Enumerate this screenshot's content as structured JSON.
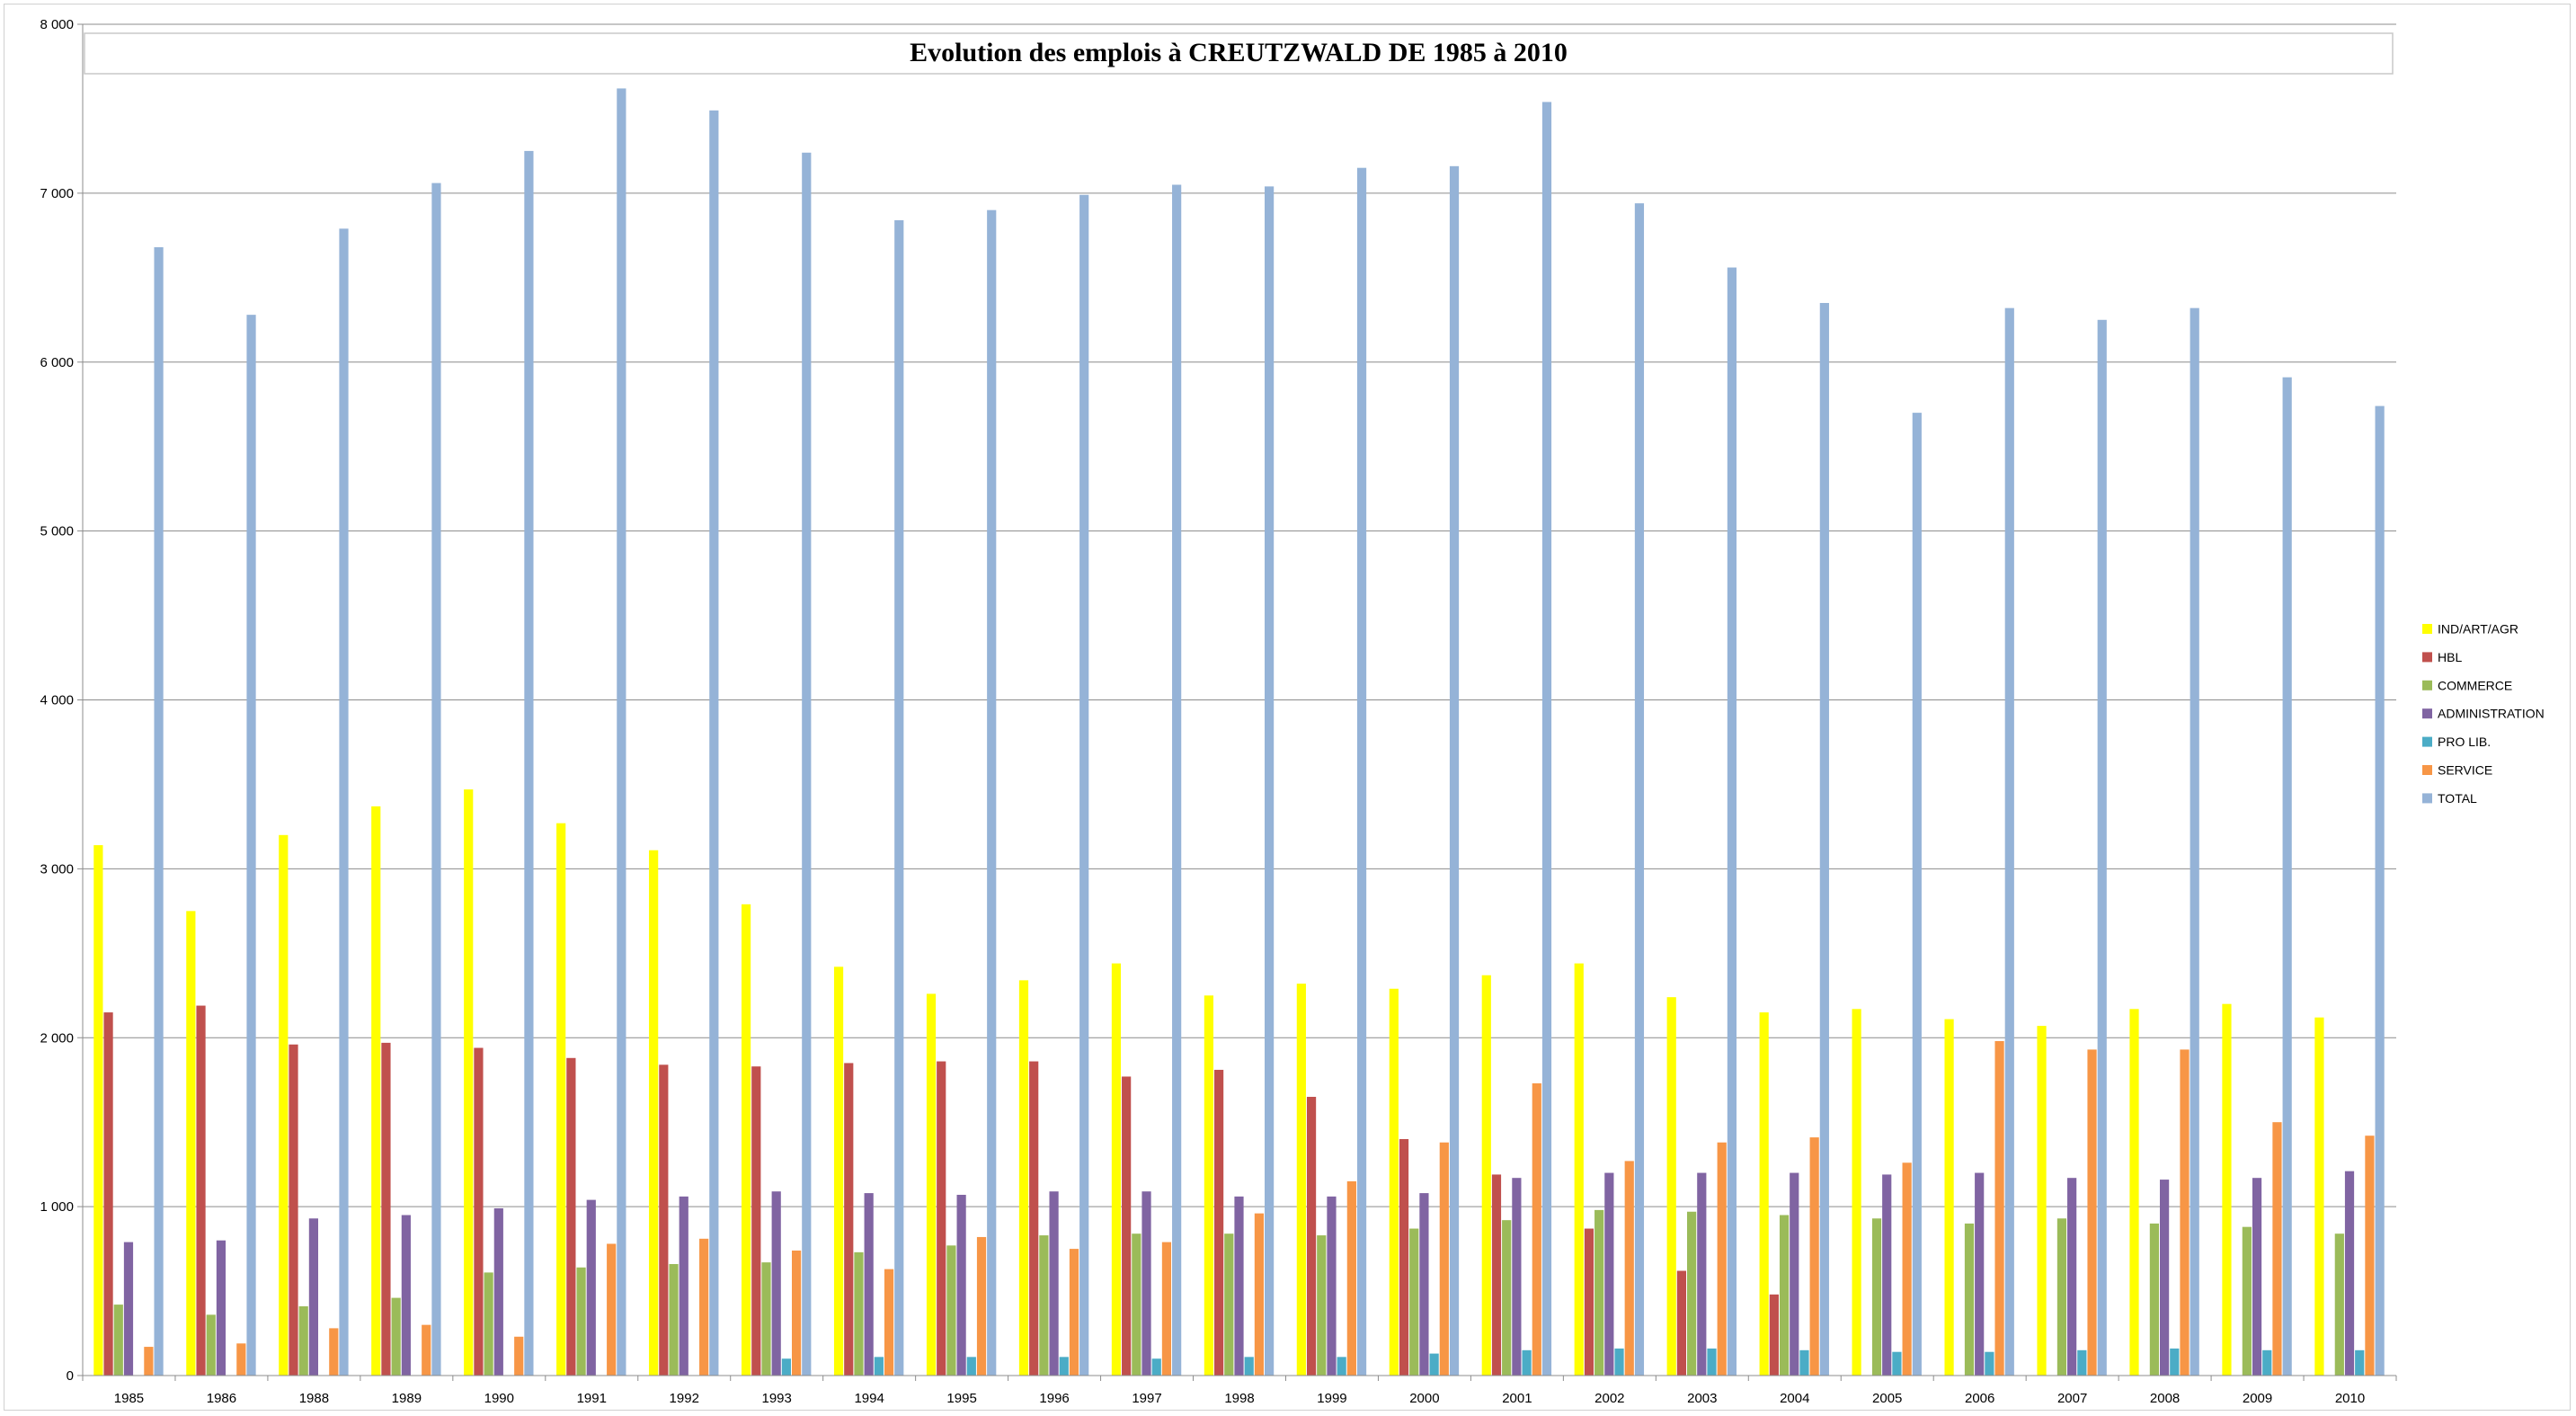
{
  "chart_data": {
    "type": "bar",
    "title": "Evolution des emplois à CREUTZWALD DE 1985 à 2010",
    "categories": [
      "1985",
      "1986",
      "1988",
      "1989",
      "1990",
      "1991",
      "1992",
      "1993",
      "1994",
      "1995",
      "1996",
      "1997",
      "1998",
      "1999",
      "2000",
      "2001",
      "2002",
      "2003",
      "2004",
      "2005",
      "2006",
      "2007",
      "2008",
      "2009",
      "2010"
    ],
    "ylim": [
      0,
      8000
    ],
    "yticks": [
      0,
      1000,
      2000,
      3000,
      4000,
      5000,
      6000,
      7000,
      8000
    ],
    "ytick_labels": [
      "0",
      "1 000",
      "2 000",
      "3 000",
      "4 000",
      "5 000",
      "6 000",
      "7 000",
      "8 000"
    ],
    "grid": true,
    "legend_position": "right",
    "series": [
      {
        "name": "IND/ART/AGR",
        "color": "#ffff00",
        "values": [
          3140,
          2750,
          3200,
          3370,
          3470,
          3270,
          3110,
          2790,
          2420,
          2260,
          2340,
          2440,
          2250,
          2320,
          2290,
          2370,
          2440,
          2240,
          2150,
          2170,
          2110,
          2070,
          2170,
          2200,
          2120
        ]
      },
      {
        "name": "HBL",
        "color": "#c0504d",
        "values": [
          2150,
          2190,
          1960,
          1970,
          1940,
          1880,
          1840,
          1830,
          1850,
          1860,
          1860,
          1770,
          1810,
          1650,
          1400,
          1190,
          870,
          620,
          480,
          0,
          0,
          0,
          0,
          0,
          0
        ]
      },
      {
        "name": "COMMERCE",
        "color": "#9bbb59",
        "values": [
          420,
          360,
          410,
          460,
          610,
          640,
          660,
          670,
          730,
          770,
          830,
          840,
          840,
          830,
          870,
          920,
          980,
          970,
          950,
          930,
          900,
          930,
          900,
          880,
          840
        ]
      },
      {
        "name": "ADMINISTRATION",
        "color": "#8064a2",
        "values": [
          790,
          800,
          930,
          950,
          990,
          1040,
          1060,
          1090,
          1080,
          1070,
          1090,
          1090,
          1060,
          1060,
          1080,
          1170,
          1200,
          1200,
          1200,
          1190,
          1200,
          1170,
          1160,
          1170,
          1210
        ]
      },
      {
        "name": "PRO LIB.",
        "color": "#4bacc6",
        "values": [
          0,
          0,
          0,
          0,
          0,
          0,
          0,
          100,
          110,
          110,
          110,
          100,
          110,
          110,
          130,
          150,
          160,
          160,
          150,
          140,
          140,
          150,
          160,
          150,
          150
        ]
      },
      {
        "name": "SERVICE",
        "color": "#f79646",
        "values": [
          170,
          190,
          280,
          300,
          230,
          780,
          810,
          740,
          630,
          820,
          750,
          790,
          960,
          1150,
          1380,
          1730,
          1270,
          1380,
          1410,
          1260,
          1980,
          1930,
          1930,
          1500,
          1420
        ]
      },
      {
        "name": "TOTAL",
        "color": "#95b3d7",
        "values": [
          6680,
          6280,
          6790,
          7060,
          7250,
          7620,
          7490,
          7240,
          6840,
          6900,
          6990,
          7050,
          7040,
          7150,
          7160,
          7540,
          6940,
          6560,
          6350,
          5700,
          6320,
          6250,
          6320,
          5910,
          5740
        ]
      }
    ]
  }
}
